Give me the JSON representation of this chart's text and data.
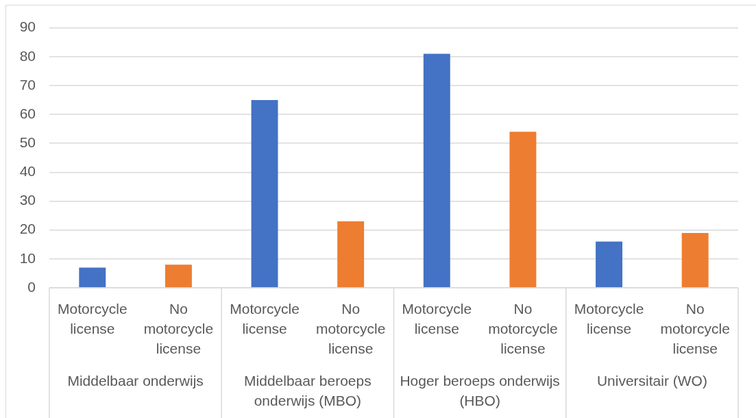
{
  "chart_data": {
    "type": "bar",
    "categories": [
      "Middelbaar onderwijs",
      "Middelbaar beroeps onderwijs (MBO)",
      "Hoger beroeps onderwijs (HBO)",
      "Universitair (WO)"
    ],
    "series": [
      {
        "name": "Motorcycle license",
        "color": "#4472c4",
        "values": [
          7,
          65,
          81,
          16
        ]
      },
      {
        "name": "No motorcycle license",
        "color": "#ed7d31",
        "values": [
          8,
          23,
          54,
          19
        ]
      }
    ],
    "ylim": [
      0,
      90
    ],
    "yticks": [
      0,
      10,
      20,
      30,
      40,
      50,
      60,
      70,
      80,
      90
    ],
    "grid": "y"
  }
}
